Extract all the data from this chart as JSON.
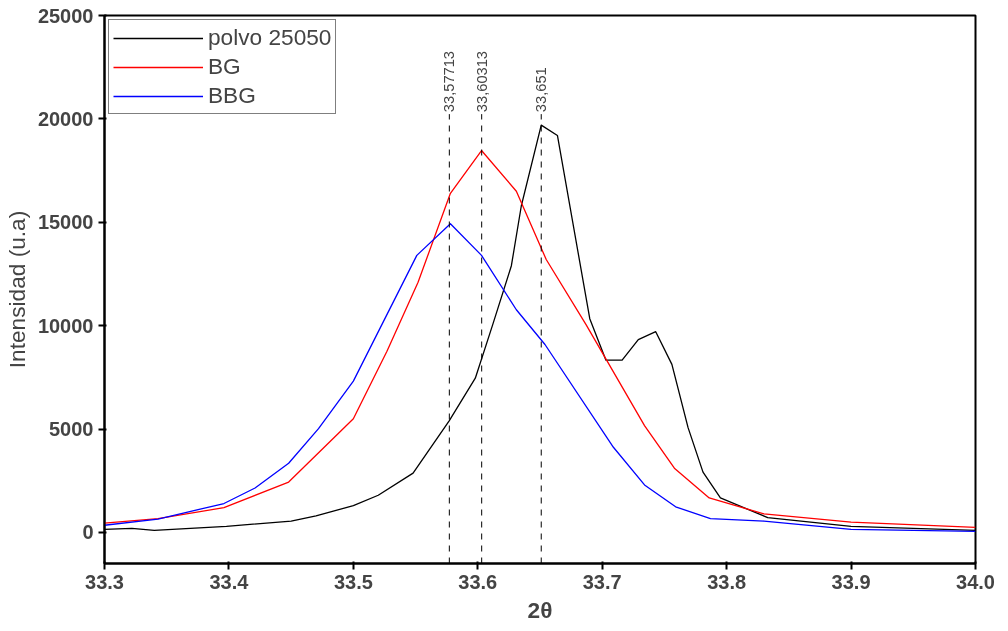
{
  "chart_data": {
    "type": "line",
    "xlabel": "2θ",
    "ylabel": "Intensidad (u.a)",
    "xlim": [
      33.3,
      34.0
    ],
    "xticks": [
      {
        "value": 33.3,
        "label": "33.3"
      },
      {
        "value": 33.4,
        "label": "33.4"
      },
      {
        "value": 33.5,
        "label": "33.5"
      },
      {
        "value": 33.6,
        "label": "33.6"
      },
      {
        "value": 33.7,
        "label": "33.7"
      },
      {
        "value": 33.8,
        "label": "33.8"
      },
      {
        "value": 33.9,
        "label": "33.9"
      },
      {
        "value": 34.0,
        "label": "34.0"
      }
    ],
    "ylim": [
      -1500,
      25000
    ],
    "yticks": [
      0,
      5000,
      10000,
      15000,
      20000,
      25000
    ],
    "grid": false,
    "legend": "top left",
    "marker": "none",
    "line_style": "solid",
    "series": [
      {
        "name": "polvo 25050",
        "color": "#000000",
        "x": [
          33.3,
          33.322,
          33.34,
          33.398,
          33.45,
          33.47,
          33.5,
          33.52,
          33.548,
          33.577,
          33.598,
          33.612,
          33.627,
          33.635,
          33.651,
          33.664,
          33.69,
          33.703,
          33.716,
          33.729,
          33.743,
          33.756,
          33.769,
          33.781,
          33.795,
          33.833,
          33.9,
          34.0
        ],
        "values": [
          150,
          200,
          100,
          300,
          550,
          800,
          1300,
          1800,
          2870,
          5400,
          7460,
          10050,
          12900,
          15800,
          19700,
          19200,
          10340,
          8330,
          8330,
          9330,
          9710,
          8130,
          5070,
          2920,
          1670,
          720,
          300,
          100
        ]
      },
      {
        "name": "BG",
        "color": "#ff0000",
        "x": [
          33.3,
          33.343,
          33.396,
          33.448,
          33.5,
          33.527,
          33.552,
          33.578,
          33.603,
          33.631,
          33.655,
          33.687,
          33.734,
          33.758,
          33.786,
          33.83,
          33.9,
          34.0
        ],
        "values": [
          450,
          670,
          1200,
          2440,
          5500,
          8760,
          12100,
          16400,
          18470,
          16500,
          13200,
          10050,
          5170,
          3110,
          1670,
          900,
          500,
          250
        ]
      },
      {
        "name": "BBG",
        "color": "#0000ff",
        "x": [
          33.3,
          33.343,
          33.396,
          33.421,
          33.448,
          33.472,
          33.5,
          33.551,
          33.578,
          33.603,
          33.631,
          33.654,
          33.709,
          33.734,
          33.759,
          33.787,
          33.83,
          33.9,
          34.0
        ],
        "values": [
          350,
          650,
          1400,
          2150,
          3350,
          5020,
          7320,
          13400,
          14930,
          13400,
          10770,
          9090,
          4120,
          2300,
          1240,
          670,
          550,
          150,
          50
        ]
      }
    ],
    "ref_lines": [
      {
        "axis": "x",
        "value": 33.57713,
        "label": "33,57713",
        "line_style": "dashed"
      },
      {
        "axis": "x",
        "value": 33.60313,
        "label": "33,60313",
        "line_style": "dashed"
      },
      {
        "axis": "x",
        "value": 33.651,
        "label": "33,651",
        "line_style": "dashed"
      }
    ]
  }
}
